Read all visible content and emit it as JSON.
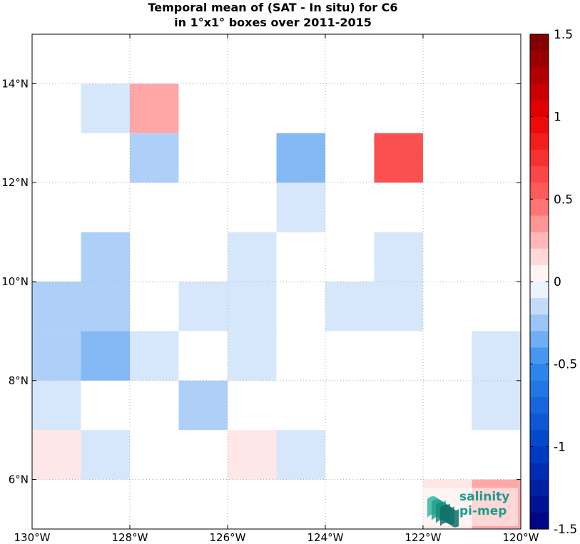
{
  "title": {
    "line1": "Temporal mean of (SAT - In situ) for C6",
    "line2": "in 1°x1° boxes over 2011-2015"
  },
  "logo": {
    "line1": "salinity",
    "line2": "pi-mep"
  },
  "chart_data": {
    "type": "heatmap",
    "title": "Temporal mean of (SAT - In situ) for C6 in 1°x1° boxes over 2011-2015",
    "xlim": [
      -130,
      -120
    ],
    "ylim": [
      5,
      15
    ],
    "xticks": [
      {
        "value": -130,
        "label": "130°W"
      },
      {
        "value": -128,
        "label": "128°W"
      },
      {
        "value": -126,
        "label": "126°W"
      },
      {
        "value": -124,
        "label": "124°W"
      },
      {
        "value": -122,
        "label": "122°W"
      },
      {
        "value": -120,
        "label": "120°W"
      }
    ],
    "yticks": [
      {
        "value": 6,
        "label": "6°N"
      },
      {
        "value": 8,
        "label": "8°N"
      },
      {
        "value": 10,
        "label": "10°N"
      },
      {
        "value": 12,
        "label": "12°N"
      },
      {
        "value": 14,
        "label": "14°N"
      }
    ],
    "grid": true,
    "colorbar": {
      "min": -1.5,
      "max": 1.5,
      "ticks": [
        {
          "value": 1.5,
          "label": "1.5"
        },
        {
          "value": 1,
          "label": "1"
        },
        {
          "value": 0.5,
          "label": "0.5"
        },
        {
          "value": 0,
          "label": "0"
        },
        {
          "value": -0.5,
          "label": "-0.5"
        },
        {
          "value": -1,
          "label": "-1"
        },
        {
          "value": -1.5,
          "label": "-1.5"
        }
      ]
    },
    "cells": [
      {
        "lon": -129,
        "lat": 13,
        "value": -0.1
      },
      {
        "lon": -128,
        "lat": 13,
        "value": 0.3
      },
      {
        "lon": -128,
        "lat": 12,
        "value": -0.2
      },
      {
        "lon": -125,
        "lat": 12,
        "value": -0.3
      },
      {
        "lon": -123,
        "lat": 12,
        "value": 0.6
      },
      {
        "lon": -125,
        "lat": 11,
        "value": -0.1
      },
      {
        "lon": -129,
        "lat": 10,
        "value": -0.2
      },
      {
        "lon": -126,
        "lat": 10,
        "value": -0.1
      },
      {
        "lon": -123,
        "lat": 10,
        "value": -0.1
      },
      {
        "lon": -130,
        "lat": 9,
        "value": -0.2
      },
      {
        "lon": -129,
        "lat": 9,
        "value": -0.2
      },
      {
        "lon": -127,
        "lat": 9,
        "value": -0.1
      },
      {
        "lon": -126,
        "lat": 9,
        "value": -0.1
      },
      {
        "lon": -124,
        "lat": 9,
        "value": -0.1
      },
      {
        "lon": -123,
        "lat": 9,
        "value": -0.1
      },
      {
        "lon": -130,
        "lat": 8,
        "value": -0.2
      },
      {
        "lon": -129,
        "lat": 8,
        "value": -0.3
      },
      {
        "lon": -128,
        "lat": 8,
        "value": -0.1
      },
      {
        "lon": -126,
        "lat": 8,
        "value": -0.1
      },
      {
        "lon": -121,
        "lat": 8,
        "value": -0.1
      },
      {
        "lon": -130,
        "lat": 7,
        "value": -0.1
      },
      {
        "lon": -127,
        "lat": 7,
        "value": -0.2
      },
      {
        "lon": -121,
        "lat": 7,
        "value": -0.1
      },
      {
        "lon": -130,
        "lat": 6,
        "value": 0.1
      },
      {
        "lon": -129,
        "lat": 6,
        "value": -0.1
      },
      {
        "lon": -126,
        "lat": 6,
        "value": 0.1
      },
      {
        "lon": -125,
        "lat": 6,
        "value": -0.1
      },
      {
        "lon": -122,
        "lat": 5,
        "value": 0.1
      },
      {
        "lon": -121,
        "lat": 5,
        "value": 0.3
      }
    ]
  }
}
